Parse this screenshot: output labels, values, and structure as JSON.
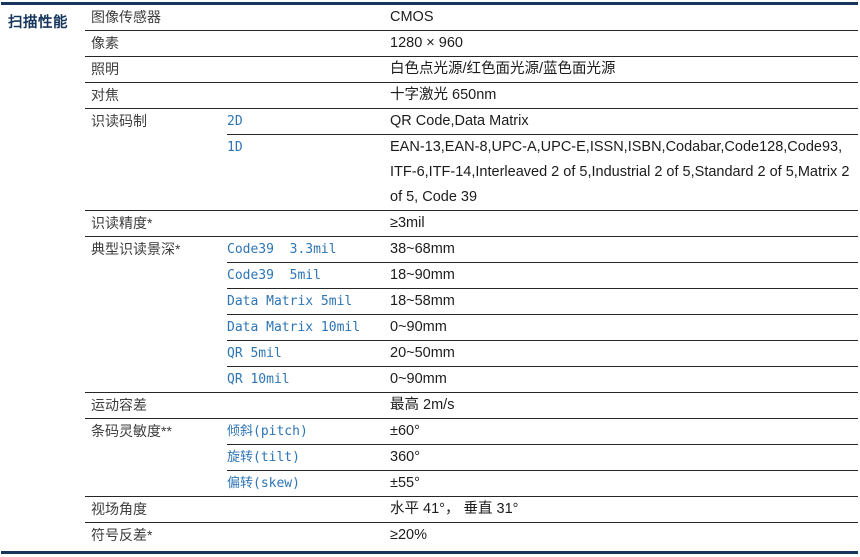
{
  "section": {
    "title": "扫描性能"
  },
  "colors": {
    "accent_navy": "#17365d",
    "key_blue": "#2e75b6",
    "label_gray": "#3d3d3d",
    "value_black": "#1c1c1c",
    "rule_thin": "#262626"
  },
  "table": {
    "rows": [
      {
        "label": "图像传感器",
        "value": "CMOS"
      },
      {
        "label": "像素",
        "value": "1280 × 960"
      },
      {
        "label": "照明",
        "value": "白色点光源/红色面光源/蓝色面光源"
      },
      {
        "label": "对焦",
        "value": "十字激光 650nm"
      },
      {
        "label": "识读码制",
        "subrows": [
          {
            "key": "2D",
            "value": "QR Code,Data Matrix"
          },
          {
            "key": "1D",
            "value": "EAN-13,EAN-8,UPC-A,UPC-E,ISSN,ISBN,Codabar,Code128,Code93, ITF-6,ITF-14,Interleaved 2 of 5,Industrial 2 of 5,Standard 2 of 5,Matrix 2 of 5, Code 39"
          }
        ]
      },
      {
        "label": "识读精度*",
        "value": "≥3mil"
      },
      {
        "label": "典型识读景深*",
        "subrows": [
          {
            "key": "Code39  3.3mil",
            "value": "38~68mm"
          },
          {
            "key": "Code39  5mil",
            "value": "18~90mm"
          },
          {
            "key": "Data Matrix 5mil",
            "value": "18~58mm"
          },
          {
            "key": "Data Matrix 10mil",
            "value": "0~90mm"
          },
          {
            "key": "QR 5mil",
            "value": "20~50mm"
          },
          {
            "key": "QR 10mil",
            "value": "0~90mm"
          }
        ]
      },
      {
        "label": "运动容差",
        "value": "最高 2m/s"
      },
      {
        "label": "条码灵敏度**",
        "subrows": [
          {
            "key": "倾斜(pitch)",
            "value": "±60°"
          },
          {
            "key": "旋转(tilt)",
            "value": "360°"
          },
          {
            "key": "偏转(skew)",
            "value": "±55°"
          }
        ]
      },
      {
        "label": "视场角度",
        "value": "水平 41°， 垂直 31°"
      },
      {
        "label": "符号反差*",
        "value": "≥20%"
      }
    ]
  }
}
